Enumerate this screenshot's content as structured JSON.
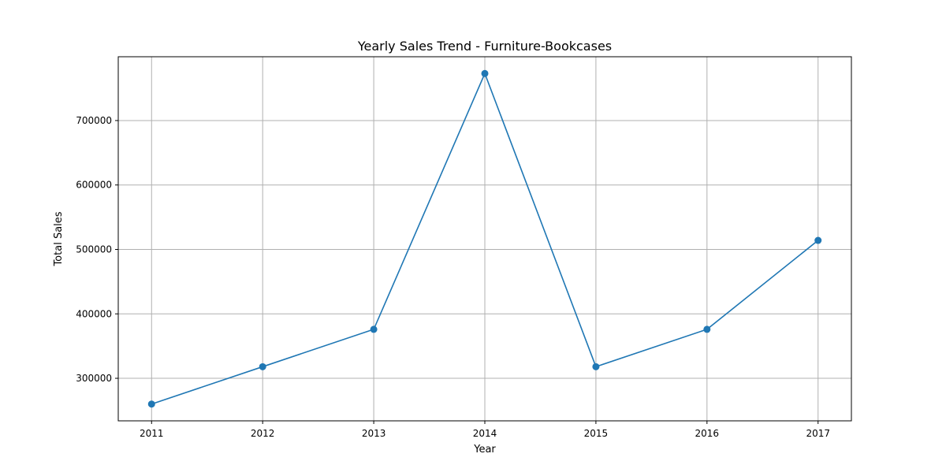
{
  "chart_data": {
    "type": "line",
    "title": "Yearly Sales Trend - Furniture-Bookcases",
    "xlabel": "Year",
    "ylabel": "Total Sales",
    "x": [
      2011,
      2012,
      2013,
      2014,
      2015,
      2016,
      2017
    ],
    "x_ticks": [
      "2011",
      "2012",
      "2013",
      "2014",
      "2015",
      "2016",
      "2017"
    ],
    "xlim": [
      2010.7,
      2017.3
    ],
    "y_ticks": [
      "300000",
      "400000",
      "500000",
      "600000",
      "700000"
    ],
    "y_tick_values": [
      300000,
      400000,
      500000,
      600000,
      700000
    ],
    "ylim": [
      234000,
      799000
    ],
    "grid": true,
    "series": [
      {
        "values": [
          260000,
          318000,
          376000,
          773000,
          318000,
          376000,
          514000
        ],
        "color": "#1f77b4",
        "marker": "circle"
      }
    ],
    "colors": {
      "line": "#1f77b4",
      "grid": "#b0b0b0",
      "axes": "#000000"
    }
  }
}
